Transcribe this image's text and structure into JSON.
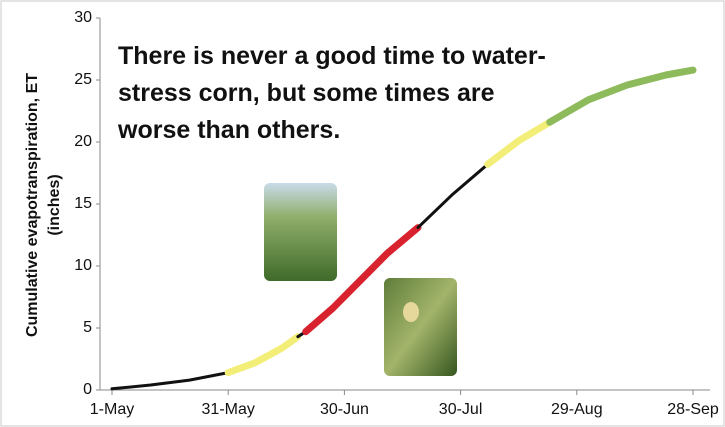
{
  "chart_data": {
    "type": "line",
    "annotation": [
      "There is never a good time to water-",
      "stress corn, but some times are",
      "worse than others."
    ],
    "y_label": [
      "Cumulative evapotranspiration, ET",
      "(inches)"
    ],
    "xlim": [
      0,
      150
    ],
    "xticks": [
      {
        "value": 0,
        "label": "1-May"
      },
      {
        "value": 30,
        "label": "31-May"
      },
      {
        "value": 60,
        "label": "30-Jun"
      },
      {
        "value": 90,
        "label": "30-Jul"
      },
      {
        "value": 120,
        "label": "29-Aug"
      },
      {
        "value": 150,
        "label": "28-Sep"
      }
    ],
    "ylim": [
      0,
      30
    ],
    "yticks": [
      0,
      5,
      10,
      15,
      20,
      25,
      30
    ],
    "series": [
      {
        "color": "#111111",
        "x": [
          0,
          10,
          20,
          30
        ],
        "values": [
          0.1,
          0.4,
          0.8,
          1.4
        ]
      },
      {
        "color": "#f2ee78",
        "x": [
          30,
          37,
          44,
          48
        ],
        "values": [
          1.4,
          2.2,
          3.4,
          4.3
        ]
      },
      {
        "color": "#111111",
        "x": [
          48,
          50
        ],
        "values": [
          4.3,
          4.7
        ]
      },
      {
        "color": "#d8232e",
        "x": [
          50,
          57,
          64,
          71,
          79
        ],
        "values": [
          4.7,
          6.6,
          8.8,
          11,
          13.1
        ]
      },
      {
        "color": "#111111",
        "x": [
          79,
          88,
          97
        ],
        "values": [
          13.1,
          15.8,
          18.2
        ]
      },
      {
        "color": "#f2ee78",
        "x": [
          97,
          105,
          113
        ],
        "values": [
          18.2,
          20.1,
          21.6
        ]
      },
      {
        "color": "#8dba5a",
        "x": [
          113,
          123,
          133,
          143,
          150
        ],
        "values": [
          21.6,
          23.4,
          24.6,
          25.4,
          25.8
        ]
      }
    ]
  }
}
